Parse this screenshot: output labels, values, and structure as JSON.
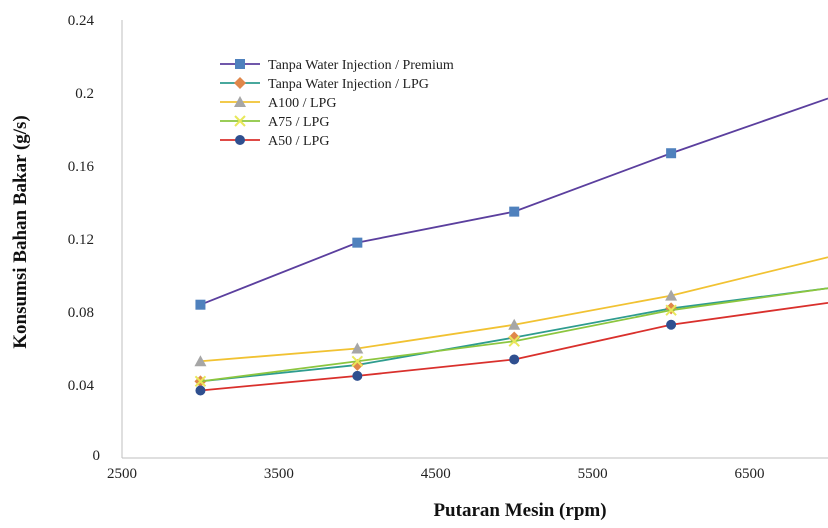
{
  "chart_data": {
    "type": "line",
    "title": "",
    "xlabel": "Putaran Mesin (rpm)",
    "ylabel": "Konsumsi Bahan Bakar (g/s)",
    "xlim": [
      2500,
      7000
    ],
    "ylim": [
      0,
      0.24
    ],
    "xticks": [
      2500,
      3500,
      4500,
      5500,
      6500
    ],
    "xtick_labels": [
      "2500",
      "3500",
      "4500",
      "5500",
      "6500"
    ],
    "yticks": [
      0,
      0.04,
      0.08,
      0.12,
      0.16,
      0.2,
      0.24
    ],
    "ytick_labels": [
      "0",
      "0.04",
      "0.08",
      "0.12",
      "0.16",
      "0.2",
      "0.24"
    ],
    "grid": false,
    "legend_position": "top-left",
    "x": [
      3000,
      4000,
      5000,
      6000,
      7000
    ],
    "series": [
      {
        "name": "Tanpa Water Injection / Premium",
        "values": [
          0.084,
          0.118,
          0.135,
          0.167,
          0.197
        ],
        "line_color": "#5b3f9e",
        "marker_color": "#4f81bd",
        "marker": "square"
      },
      {
        "name": "Tanpa Water Injection / LPG",
        "values": [
          0.042,
          0.051,
          0.066,
          0.082,
          0.093
        ],
        "line_color": "#2e9c8f",
        "marker_color": "#e0874a",
        "marker": "diamond"
      },
      {
        "name": "A100 / LPG",
        "values": [
          0.053,
          0.06,
          0.073,
          0.089,
          0.11
        ],
        "line_color": "#f1c232",
        "marker_color": "#a6a6a6",
        "marker": "triangle"
      },
      {
        "name": "A75 / LPG",
        "values": [
          0.042,
          0.053,
          0.064,
          0.081,
          0.093
        ],
        "line_color": "#8cc63f",
        "marker_color": "#e8e85a",
        "marker": "x"
      },
      {
        "name": "A50 / LPG",
        "values": [
          0.037,
          0.045,
          0.054,
          0.073,
          0.085
        ],
        "line_color": "#d9302c",
        "marker_color": "#2f4f8f",
        "marker": "circle"
      }
    ]
  }
}
